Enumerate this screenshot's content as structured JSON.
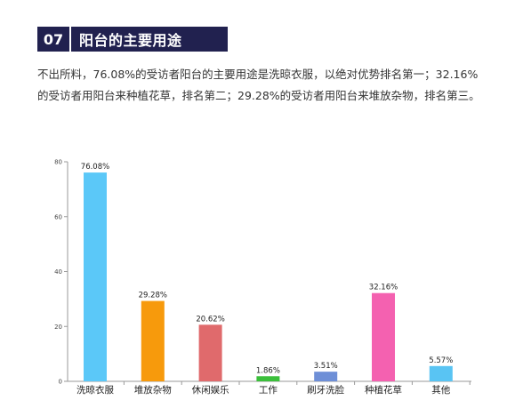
{
  "section": {
    "number": "07",
    "title": "阳台的主要用途"
  },
  "paragraph": "不出所料，76.08%的受访者阳台的主要用途是洗晾衣服，以绝对优势排名第一；32.16%的受访者用阳台来种植花草，排名第二；29.28%的受访者用阳台来堆放杂物，排名第三。",
  "chart_data": {
    "type": "bar",
    "categories": [
      "洗晾衣服",
      "堆放杂物",
      "休闲娱乐",
      "工作",
      "刷牙洗脸",
      "种植花草",
      "其他"
    ],
    "values": [
      76.08,
      29.28,
      20.62,
      1.86,
      3.51,
      32.16,
      5.57
    ],
    "data_labels": [
      "76.08%",
      "29.28%",
      "20.62%",
      "1.86%",
      "3.51%",
      "32.16%",
      "5.57%"
    ],
    "colors": [
      "#5bc8f8",
      "#f79a0c",
      "#e06a6c",
      "#3bbf3b",
      "#6e8fd7",
      "#f461b0",
      "#59c4f3"
    ],
    "ylim": [
      0,
      80
    ],
    "yticks": [
      0,
      20,
      40,
      60,
      80
    ],
    "grid": false,
    "title": "",
    "xlabel": "",
    "ylabel": ""
  }
}
